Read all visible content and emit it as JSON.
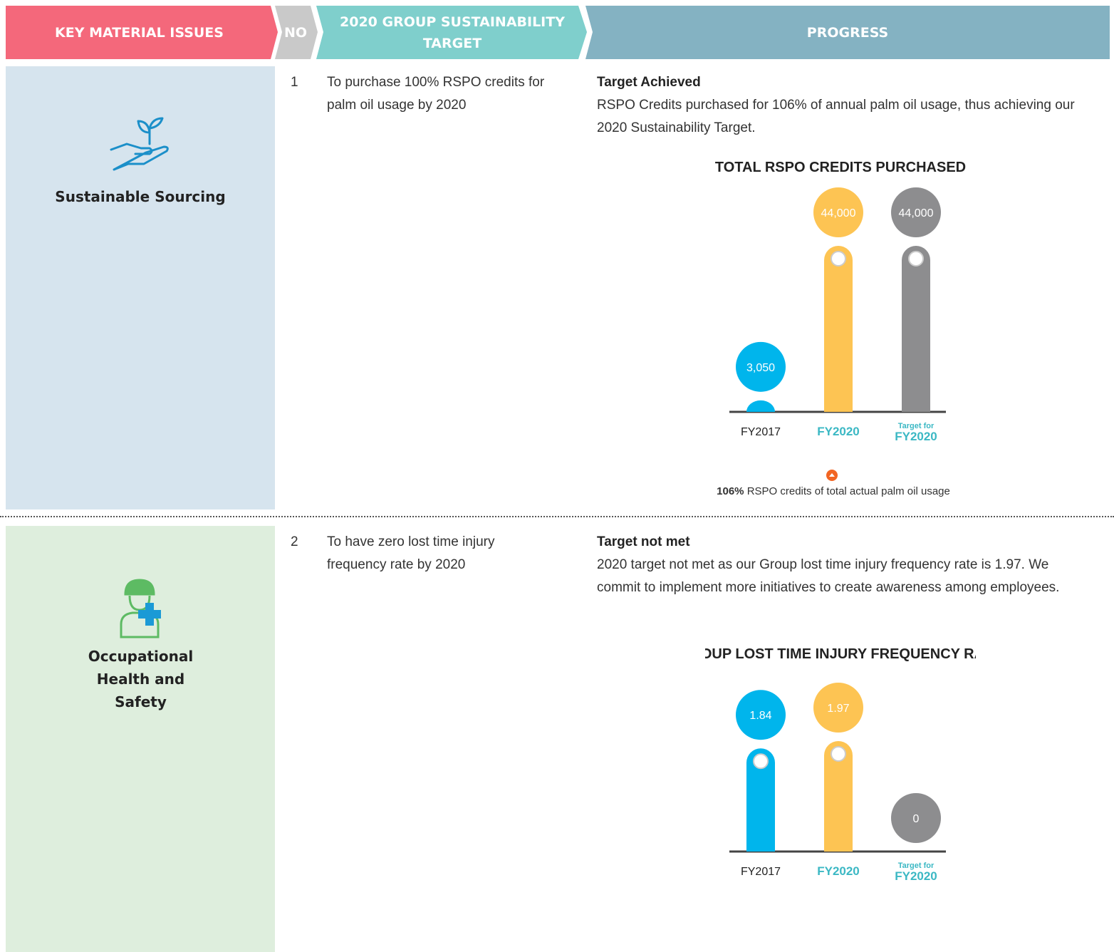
{
  "header": {
    "columns": [
      "KEY MATERIAL ISSUES",
      "NO",
      "2020 GROUP SUSTAINABILITY TARGET",
      "PROGRESS"
    ]
  },
  "rows": [
    {
      "issue": "Sustainable Sourcing",
      "no": "1",
      "target": "To purchase 100% RSPO credits for palm oil usage by 2020",
      "status": "Target Achieved",
      "description": "RSPO Credits purchased for 106% of annual palm oil usage, thus achieving our 2020 Sustainability Target.",
      "chart": {
        "type": "bar",
        "title": "TOTAL RSPO CREDITS PURCHASED",
        "categories": [
          "FY2017",
          "FY2020",
          "FY2020"
        ],
        "category_notes": [
          null,
          null,
          "Target for"
        ],
        "values": [
          3050,
          44000,
          44000
        ],
        "value_labels": [
          "3,050",
          "44,000",
          "44,000"
        ],
        "colors": [
          "#00b5ec",
          "#fdc453",
          "#8d8d8f"
        ]
      },
      "note": {
        "emphasis": "106%",
        "text": "RSPO credits of total actual palm oil usage"
      }
    },
    {
      "issue": "Occupational Health and Safety",
      "no": "2",
      "target": "To have zero lost time injury frequency rate by 2020",
      "status": "Target not met",
      "description": "2020 target not met as our Group lost time injury frequency rate is 1.97. We commit to implement more initiatives to create awareness among employees.",
      "chart": {
        "type": "bar",
        "title": "GROUP LOST TIME INJURY FREQUENCY RATE",
        "categories": [
          "FY2017",
          "FY2020",
          "FY2020"
        ],
        "category_notes": [
          null,
          null,
          "Target for"
        ],
        "values": [
          1.84,
          1.97,
          0
        ],
        "colors": [
          "#00b5ec",
          "#fdc453",
          "#8d8d8f"
        ]
      }
    }
  ]
}
